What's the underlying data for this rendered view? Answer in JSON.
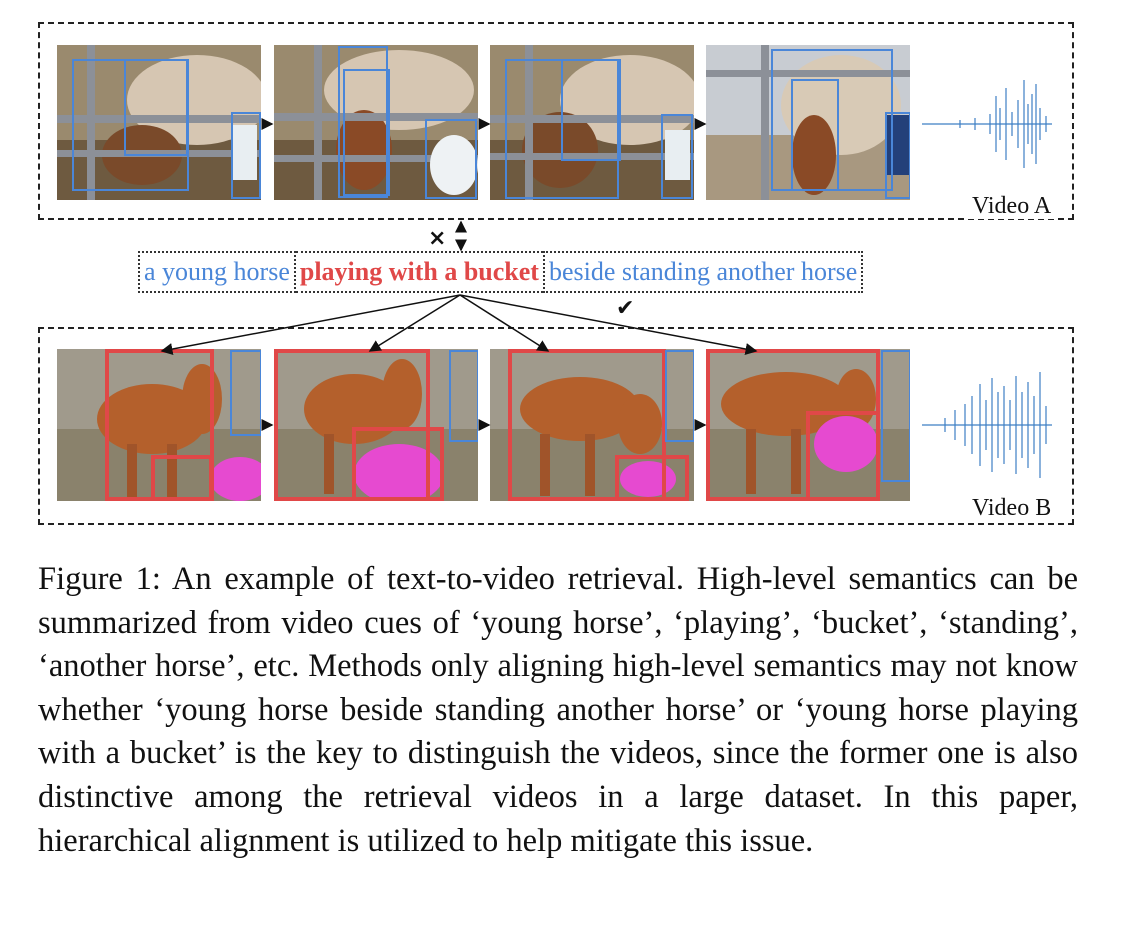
{
  "video_a": {
    "label": "Video A"
  },
  "video_b": {
    "label": "Video B"
  },
  "query": {
    "part1": "a young horse",
    "part2": "playing with a bucket",
    "part3": "beside standing another horse"
  },
  "marks": {
    "cross": "×",
    "double_arrow": "↕",
    "check": "✔"
  },
  "caption": "Figure 1: An example of text-to-video retrieval. High-level semantics can be summarized from video cues of ‘young horse’, ‘playing’, ‘bucket’, ‘standing’, ‘another horse’, etc. Methods only aligning high-level semantics may not know whether ‘young horse beside standing another horse’ or ‘young horse playing with a bucket’ is the key to distinguish the videos, since the former one is also distinctive among the retrieval videos in a large dataset. In this paper, hierarchical alignment is utilized to help mitigate this issue.",
  "colors": {
    "blue_box": "#4a86d8",
    "red_box": "#e04848",
    "waveform": "#3d7fc4"
  }
}
